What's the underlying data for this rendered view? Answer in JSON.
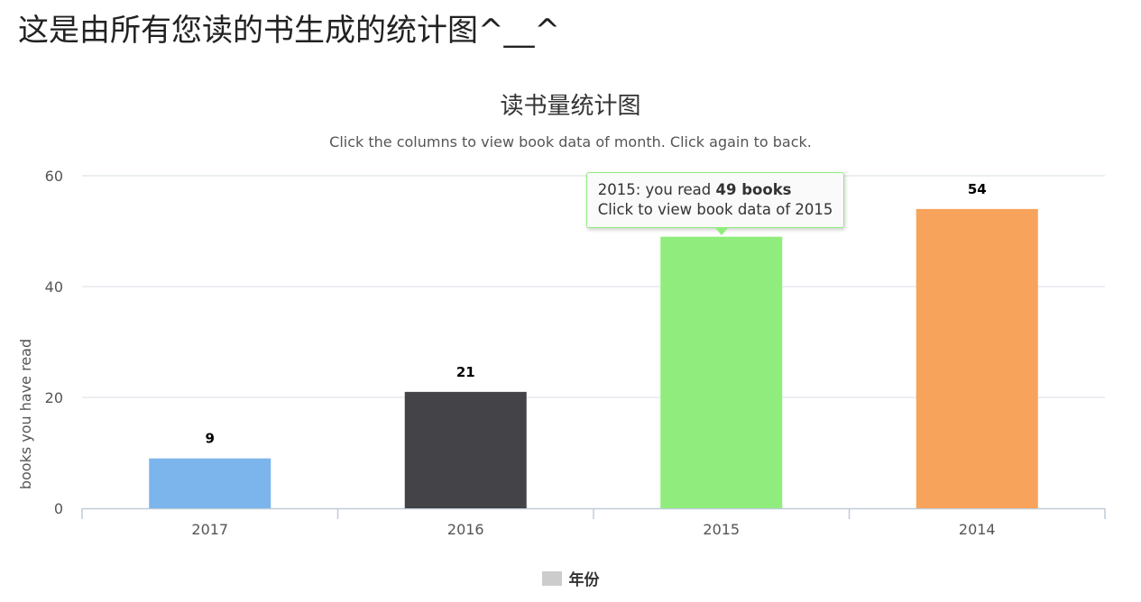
{
  "page": {
    "heading": "这是由所有您读的书生成的统计图^__^"
  },
  "chart_data": {
    "type": "bar",
    "title": "读书量统计图",
    "subtitle": "Click the columns to view book data of month. Click again to back.",
    "ylabel": "books you have read",
    "xlabel": "",
    "categories": [
      "2017",
      "2016",
      "2015",
      "2014"
    ],
    "series": [
      {
        "name": "年份",
        "values": [
          9,
          21,
          49,
          54
        ]
      }
    ],
    "colors": [
      "#7cb5ec",
      "#434348",
      "#90ed7d",
      "#f7a35c"
    ],
    "ylim": [
      0,
      60
    ],
    "yticks": [
      0,
      20,
      40,
      60
    ],
    "grid": true,
    "data_labels": true,
    "legend": {
      "position": "bottom",
      "label": "年份",
      "color": "#cccccc"
    }
  },
  "tooltip": {
    "category": "2015",
    "line1_prefix": "2015: you read ",
    "line1_bold": "49 books",
    "line2": "Click to view book data of 2015",
    "border_color": "#90ed7d"
  }
}
